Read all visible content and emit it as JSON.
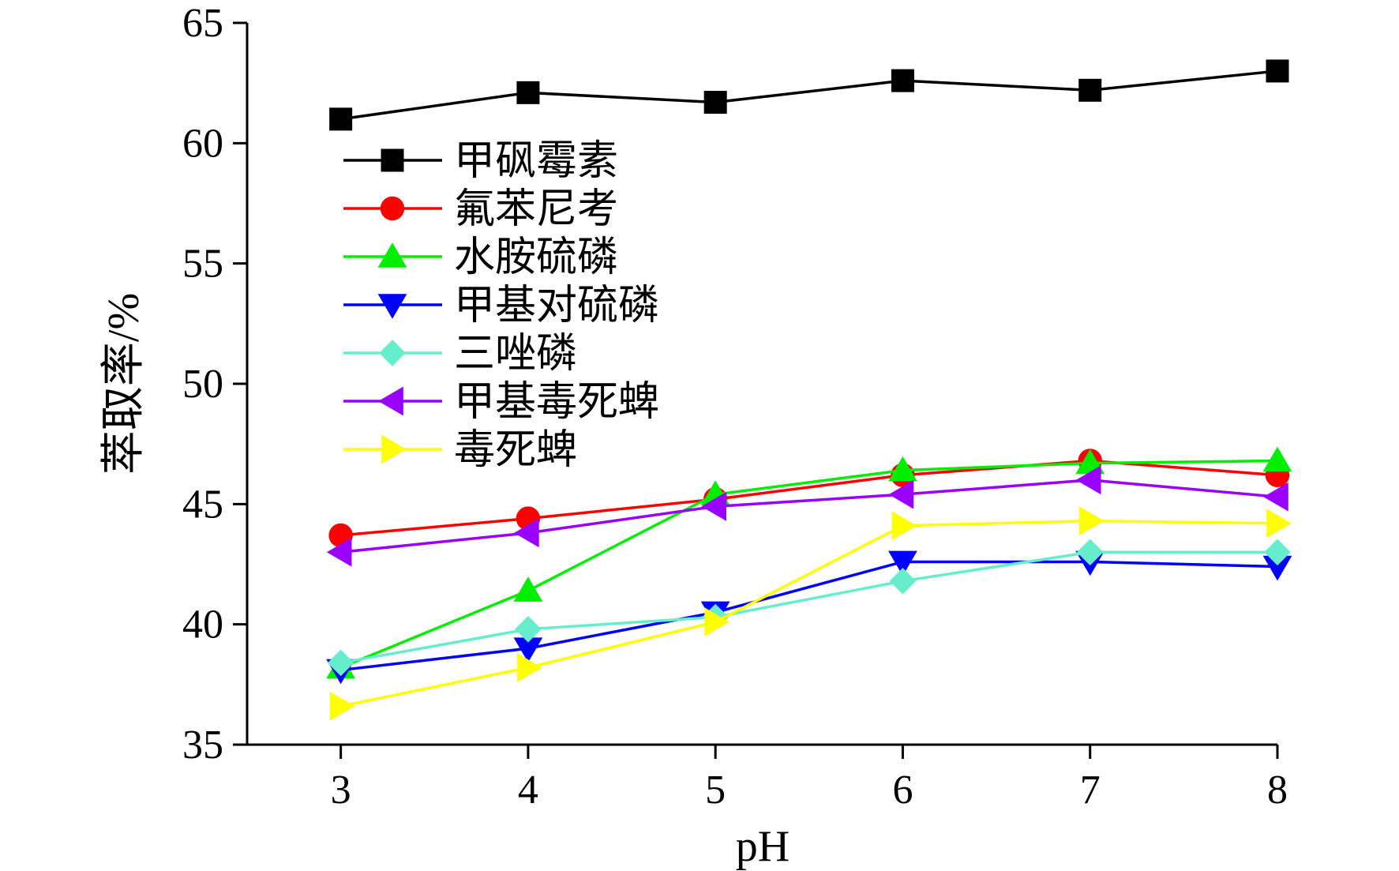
{
  "chart_data": {
    "type": "line",
    "title": "",
    "xlabel": "pH",
    "ylabel": "萃取率/%",
    "x": [
      3,
      4,
      5,
      6,
      7,
      8
    ],
    "xticks": [
      "3",
      "4",
      "5",
      "6",
      "7",
      "8"
    ],
    "yticks": [
      "35",
      "40",
      "45",
      "50",
      "55",
      "60",
      "65"
    ],
    "xlim": [
      2.5,
      8
    ],
    "ylim": [
      35,
      65
    ],
    "grid": false,
    "legend_position": "upper-left",
    "series": [
      {
        "name": "甲砜霉素",
        "color": "#000000",
        "marker": "square",
        "values": [
          61.0,
          62.1,
          61.7,
          62.6,
          62.2,
          63.0
        ]
      },
      {
        "name": "氟苯尼考",
        "color": "#ff0000",
        "marker": "circle",
        "values": [
          43.7,
          44.4,
          45.2,
          46.2,
          46.8,
          46.2
        ]
      },
      {
        "name": "水胺硫磷",
        "color": "#00ee00",
        "marker": "triangle-up",
        "values": [
          38.2,
          41.4,
          45.4,
          46.4,
          46.7,
          46.8
        ]
      },
      {
        "name": "甲基对硫磷",
        "color": "#0000ff",
        "marker": "triangle-down",
        "values": [
          38.1,
          39.0,
          40.5,
          42.6,
          42.6,
          42.4
        ]
      },
      {
        "name": "三唑磷",
        "color": "#66eecc",
        "marker": "diamond",
        "values": [
          38.4,
          39.8,
          40.3,
          41.8,
          43.0,
          43.0
        ]
      },
      {
        "name": "甲基毒死蜱",
        "color": "#9900ff",
        "marker": "triangle-left",
        "values": [
          43.0,
          43.8,
          44.9,
          45.4,
          46.0,
          45.3
        ]
      },
      {
        "name": "毒死蜱",
        "color": "#ffff00",
        "marker": "triangle-right",
        "values": [
          36.6,
          38.2,
          40.1,
          44.1,
          44.3,
          44.2
        ]
      }
    ]
  }
}
